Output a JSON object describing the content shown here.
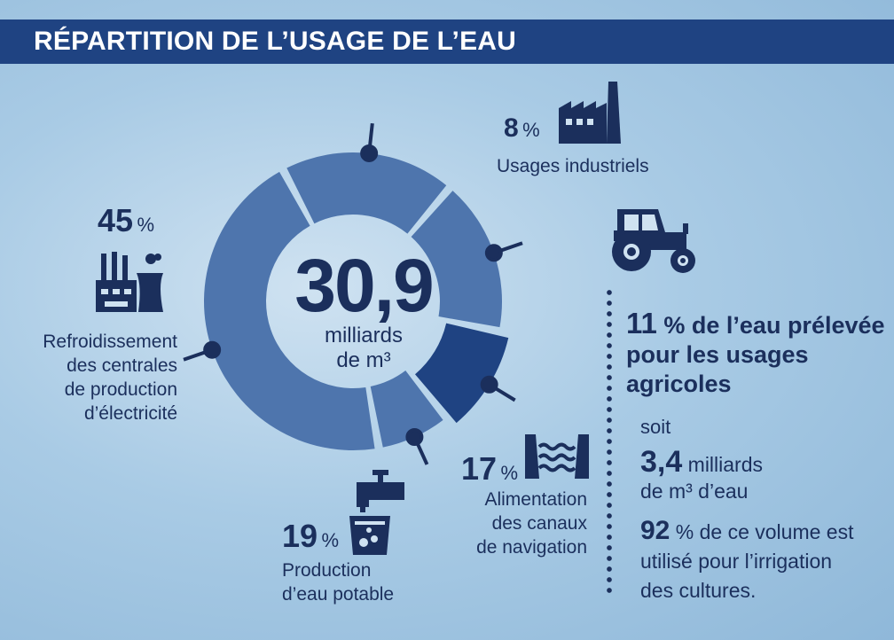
{
  "header": {
    "title": "RÉPARTITION DE L’USAGE DE L’EAU"
  },
  "center": {
    "value": "30,9",
    "unit_line1": "milliards",
    "unit_line2": "de m³"
  },
  "chart_data": {
    "type": "pie",
    "title": "RÉPARTITION DE L’USAGE DE L’EAU",
    "total": "30,9 milliards de m³",
    "categories": [
      "Refroidissement des centrales de production d’électricité",
      "Production d’eau potable",
      "Alimentation des canaux de navigation",
      "Usages agricoles",
      "Usages industriels"
    ],
    "values": [
      45,
      19,
      17,
      11,
      8
    ],
    "unit": "%",
    "colors": [
      "#4e75ad",
      "#4e75ad",
      "#4e75ad",
      "#1f4382",
      "#4e75ad"
    ]
  },
  "labels": {
    "cooling": {
      "pct": "45",
      "sym": "%",
      "lines": [
        "Refroidissement",
        "des centrales",
        "de production",
        "d’électricité"
      ]
    },
    "drinking": {
      "pct": "19",
      "sym": "%",
      "lines": [
        "Production",
        "d’eau potable"
      ]
    },
    "canals": {
      "pct": "17",
      "sym": "%",
      "lines": [
        "Alimentation",
        "des canaux",
        "de navigation"
      ]
    },
    "industry": {
      "pct": "8",
      "sym": "%",
      "lines": [
        "Usages industriels"
      ]
    }
  },
  "agri": {
    "pct": "11",
    "rest_line1": " % de l’eau prélevée",
    "line2": "pour les usages",
    "line3": "agricoles",
    "soit": "soit",
    "vol_num": "3,4",
    "vol_unit": " milliards",
    "vol_line2": "de m³ d’eau",
    "irr_pct": "92",
    "irr_rest": " % de ce volume est",
    "irr_line2": "utilisé pour l’irrigation",
    "irr_line3": "des cultures."
  },
  "icons": [
    "factory-icon",
    "tractor-icon",
    "power-plant-icon",
    "water-tap-icon",
    "canal-icon"
  ]
}
